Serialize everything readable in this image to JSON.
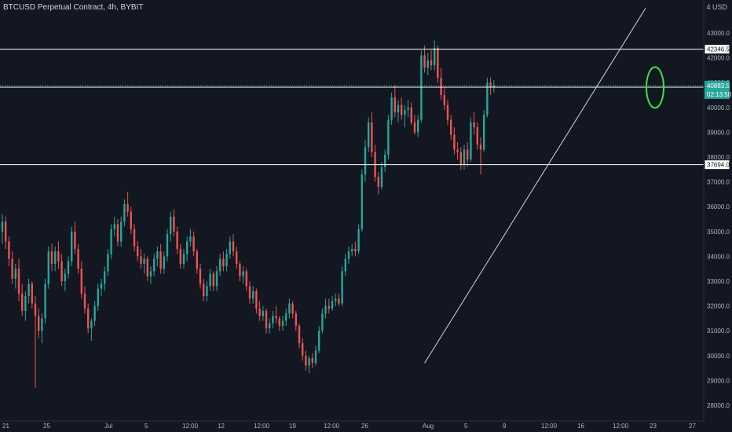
{
  "header": {
    "symbol": "BTCUSD Perpetual Contract",
    "separator": ", ",
    "interval": "4h",
    "exchange": "BYBIT"
  },
  "corner_label": "4 USD",
  "colors": {
    "background": "#131722",
    "up": "#26a69a",
    "down": "#ef5350",
    "level_line": "#ffffff",
    "trend_line": "#d1d4dc",
    "annotation": "#39e63a",
    "current_price_bg": "#26a69a",
    "axis_text": "#b2b5be"
  },
  "chart_data": {
    "type": "candlestick",
    "title": "BTCUSD Perpetual Contract, 4h, BYBIT",
    "price_axis": {
      "side": "right",
      "ticks": [
        43000,
        42000,
        41000,
        40000,
        39000,
        38000,
        37000,
        36000,
        35000,
        34000,
        33000,
        32000,
        31000,
        30000,
        29000,
        28000
      ],
      "tick_labels": [
        "43000.0",
        "42000.0",
        "41000.0",
        "40000.0",
        "39000.0",
        "38000.0",
        "37000.0",
        "36000.0",
        "35000.0",
        "34000.0",
        "33000.0",
        "32000.0",
        "31000.0",
        "30000.0",
        "29000.0",
        "28000.0"
      ]
    },
    "time_axis": {
      "labels": [
        "21",
        "25",
        "Jul",
        "5",
        "12:00",
        "12",
        "12:00",
        "19",
        "12:00",
        "26",
        "Aug",
        "5",
        "9",
        "12:00",
        "16",
        "12:00",
        "23",
        "27"
      ]
    },
    "levels": [
      {
        "price": 42346.5,
        "label": "42346.5"
      },
      {
        "price": 40815.5,
        "label": "40815.5"
      },
      {
        "price": 37694.0,
        "label": "37694.0"
      }
    ],
    "current_price": {
      "price": 40883.5,
      "label": "40883.5",
      "countdown": "02:13:50"
    },
    "trend_line": {
      "from": {
        "index": 128,
        "price": 29700
      },
      "to": {
        "index": 195,
        "price": 44000
      }
    },
    "highlight_ellipse": {
      "index": 195,
      "price": 40900
    },
    "candles_ohlc": [
      [
        35000,
        35700,
        34500,
        35400
      ],
      [
        35400,
        35600,
        34300,
        34600
      ],
      [
        34600,
        34800,
        33600,
        33900
      ],
      [
        33900,
        34200,
        32900,
        33100
      ],
      [
        33100,
        33700,
        32700,
        33500
      ],
      [
        33500,
        33900,
        32200,
        32500
      ],
      [
        32500,
        32900,
        31600,
        31800
      ],
      [
        31800,
        32600,
        31400,
        32400
      ],
      [
        32400,
        33100,
        32100,
        32900
      ],
      [
        32900,
        33000,
        31900,
        32100
      ],
      [
        32100,
        32400,
        28700,
        31600
      ],
      [
        31600,
        31900,
        30700,
        31000
      ],
      [
        31000,
        31700,
        30500,
        31500
      ],
      [
        31500,
        33100,
        31300,
        32900
      ],
      [
        32900,
        34400,
        32700,
        34200
      ],
      [
        34200,
        34500,
        33400,
        33700
      ],
      [
        33700,
        34400,
        33400,
        34200
      ],
      [
        34200,
        34600,
        33500,
        33800
      ],
      [
        33800,
        34100,
        32800,
        33000
      ],
      [
        33000,
        33500,
        32600,
        33300
      ],
      [
        33300,
        34000,
        33100,
        33800
      ],
      [
        33800,
        35200,
        33600,
        35000
      ],
      [
        35000,
        35400,
        34100,
        34300
      ],
      [
        34300,
        34500,
        33300,
        33500
      ],
      [
        33500,
        33800,
        32300,
        32500
      ],
      [
        32500,
        32800,
        31700,
        31900
      ],
      [
        31900,
        32100,
        30900,
        31100
      ],
      [
        31100,
        31500,
        30600,
        31400
      ],
      [
        31400,
        32200,
        31200,
        32000
      ],
      [
        32000,
        32900,
        31800,
        32700
      ],
      [
        32700,
        33100,
        32400,
        32900
      ],
      [
        32900,
        33600,
        32600,
        33400
      ],
      [
        33400,
        34300,
        33200,
        34100
      ],
      [
        34100,
        35300,
        33900,
        35100
      ],
      [
        35100,
        35600,
        34800,
        35300
      ],
      [
        35300,
        35500,
        34400,
        34600
      ],
      [
        34600,
        35600,
        34400,
        35400
      ],
      [
        35400,
        36300,
        35200,
        36100
      ],
      [
        36100,
        36600,
        35600,
        35800
      ],
      [
        35800,
        36000,
        34900,
        35100
      ],
      [
        35100,
        35300,
        34200,
        34400
      ],
      [
        34400,
        34600,
        33800,
        34000
      ],
      [
        34000,
        34300,
        33500,
        33700
      ],
      [
        33700,
        34100,
        33300,
        33900
      ],
      [
        33900,
        34000,
        33000,
        33200
      ],
      [
        33200,
        33600,
        32900,
        33400
      ],
      [
        33400,
        34100,
        33200,
        33900
      ],
      [
        33900,
        34400,
        33600,
        34200
      ],
      [
        34200,
        34500,
        33300,
        33500
      ],
      [
        33500,
        34200,
        33300,
        34000
      ],
      [
        34000,
        35100,
        33800,
        34900
      ],
      [
        34900,
        35800,
        34600,
        35600
      ],
      [
        35600,
        35900,
        34800,
        35000
      ],
      [
        35000,
        35200,
        34100,
        34300
      ],
      [
        34300,
        34500,
        33500,
        33700
      ],
      [
        33700,
        34300,
        33500,
        34100
      ],
      [
        34100,
        34800,
        33800,
        34600
      ],
      [
        34600,
        35100,
        34400,
        34800
      ],
      [
        34800,
        35000,
        34000,
        34200
      ],
      [
        34200,
        34300,
        33300,
        33500
      ],
      [
        33500,
        33700,
        32700,
        32900
      ],
      [
        32900,
        33100,
        32200,
        32400
      ],
      [
        32400,
        33000,
        32200,
        32800
      ],
      [
        32800,
        33500,
        32600,
        33300
      ],
      [
        33300,
        33400,
        32600,
        32800
      ],
      [
        32800,
        33600,
        32600,
        33400
      ],
      [
        33400,
        34100,
        33200,
        33900
      ],
      [
        33900,
        34200,
        33400,
        33600
      ],
      [
        33600,
        34300,
        33400,
        34100
      ],
      [
        34100,
        34800,
        33900,
        34600
      ],
      [
        34600,
        34900,
        34000,
        34200
      ],
      [
        34200,
        34400,
        33500,
        33700
      ],
      [
        33700,
        33800,
        33000,
        33200
      ],
      [
        33200,
        33600,
        32900,
        33400
      ],
      [
        33400,
        33500,
        32600,
        32800
      ],
      [
        32800,
        33000,
        32100,
        32300
      ],
      [
        32300,
        32800,
        32100,
        32600
      ],
      [
        32600,
        32700,
        31700,
        31900
      ],
      [
        31900,
        32200,
        31400,
        31600
      ],
      [
        31600,
        32000,
        31400,
        31800
      ],
      [
        31800,
        31900,
        30900,
        31100
      ],
      [
        31100,
        31500,
        30900,
        31300
      ],
      [
        31300,
        31800,
        31100,
        31600
      ],
      [
        31600,
        32000,
        31300,
        31500
      ],
      [
        31500,
        31600,
        31000,
        31200
      ],
      [
        31200,
        31600,
        31000,
        31400
      ],
      [
        31400,
        31900,
        31200,
        31700
      ],
      [
        31700,
        32300,
        31500,
        32100
      ],
      [
        32100,
        32200,
        31500,
        31700
      ],
      [
        31700,
        31800,
        31000,
        31200
      ],
      [
        31200,
        31300,
        30300,
        30500
      ],
      [
        30500,
        30700,
        29800,
        30000
      ],
      [
        30000,
        30200,
        29400,
        29600
      ],
      [
        29600,
        30000,
        29300,
        29900
      ],
      [
        29900,
        30100,
        29500,
        29700
      ],
      [
        29700,
        30400,
        29600,
        30200
      ],
      [
        30200,
        31200,
        30100,
        31000
      ],
      [
        31000,
        31900,
        30900,
        31700
      ],
      [
        31700,
        32300,
        31500,
        32000
      ],
      [
        32000,
        32300,
        31700,
        31900
      ],
      [
        31900,
        32400,
        31800,
        32200
      ],
      [
        32200,
        32500,
        32000,
        32300
      ],
      [
        32300,
        32500,
        32000,
        32100
      ],
      [
        32100,
        33600,
        32000,
        33400
      ],
      [
        33400,
        34100,
        33200,
        33900
      ],
      [
        33900,
        34400,
        33700,
        34200
      ],
      [
        34200,
        34500,
        34000,
        34300
      ],
      [
        34300,
        34600,
        34000,
        34200
      ],
      [
        34200,
        35300,
        34100,
        35100
      ],
      [
        35100,
        37500,
        35000,
        37300
      ],
      [
        37300,
        38700,
        37000,
        38400
      ],
      [
        38400,
        39600,
        38200,
        39400
      ],
      [
        39400,
        39800,
        38000,
        38200
      ],
      [
        38200,
        38500,
        37000,
        37200
      ],
      [
        37200,
        37400,
        36500,
        36800
      ],
      [
        36800,
        37800,
        36700,
        37600
      ],
      [
        37600,
        38300,
        37400,
        38100
      ],
      [
        38100,
        39700,
        37900,
        39500
      ],
      [
        39500,
        40600,
        39300,
        40400
      ],
      [
        40400,
        40900,
        39600,
        39800
      ],
      [
        39800,
        40300,
        39400,
        40100
      ],
      [
        40100,
        40400,
        39500,
        39700
      ],
      [
        39700,
        40100,
        39200,
        39900
      ],
      [
        39900,
        40300,
        39600,
        40000
      ],
      [
        40000,
        40200,
        39300,
        39400
      ],
      [
        39400,
        39700,
        38900,
        39000
      ],
      [
        39000,
        39700,
        38800,
        39500
      ],
      [
        39500,
        42300,
        39400,
        42100
      ],
      [
        42100,
        42500,
        41400,
        41600
      ],
      [
        41600,
        42200,
        41300,
        41900
      ],
      [
        41900,
        42300,
        41500,
        41700
      ],
      [
        41700,
        42700,
        41500,
        42400
      ],
      [
        42400,
        42500,
        41000,
        41200
      ],
      [
        41200,
        41600,
        40300,
        40500
      ],
      [
        40500,
        40800,
        39900,
        40100
      ],
      [
        40100,
        40300,
        39300,
        39500
      ],
      [
        39500,
        39700,
        38700,
        38900
      ],
      [
        38900,
        39200,
        38100,
        38300
      ],
      [
        38300,
        38600,
        37900,
        38200
      ],
      [
        38200,
        38400,
        37500,
        37700
      ],
      [
        37700,
        38500,
        37500,
        38300
      ],
      [
        38300,
        38600,
        37600,
        37900
      ],
      [
        37900,
        39600,
        37800,
        39400
      ],
      [
        39400,
        39800,
        38900,
        39200
      ],
      [
        39200,
        39400,
        38300,
        38500
      ],
      [
        38500,
        38800,
        37300,
        38300
      ],
      [
        38300,
        39900,
        38200,
        39700
      ],
      [
        39700,
        41200,
        39600,
        41000
      ],
      [
        41000,
        41200,
        40500,
        40800
      ],
      [
        40800,
        41100,
        40600,
        40883.5
      ]
    ]
  }
}
